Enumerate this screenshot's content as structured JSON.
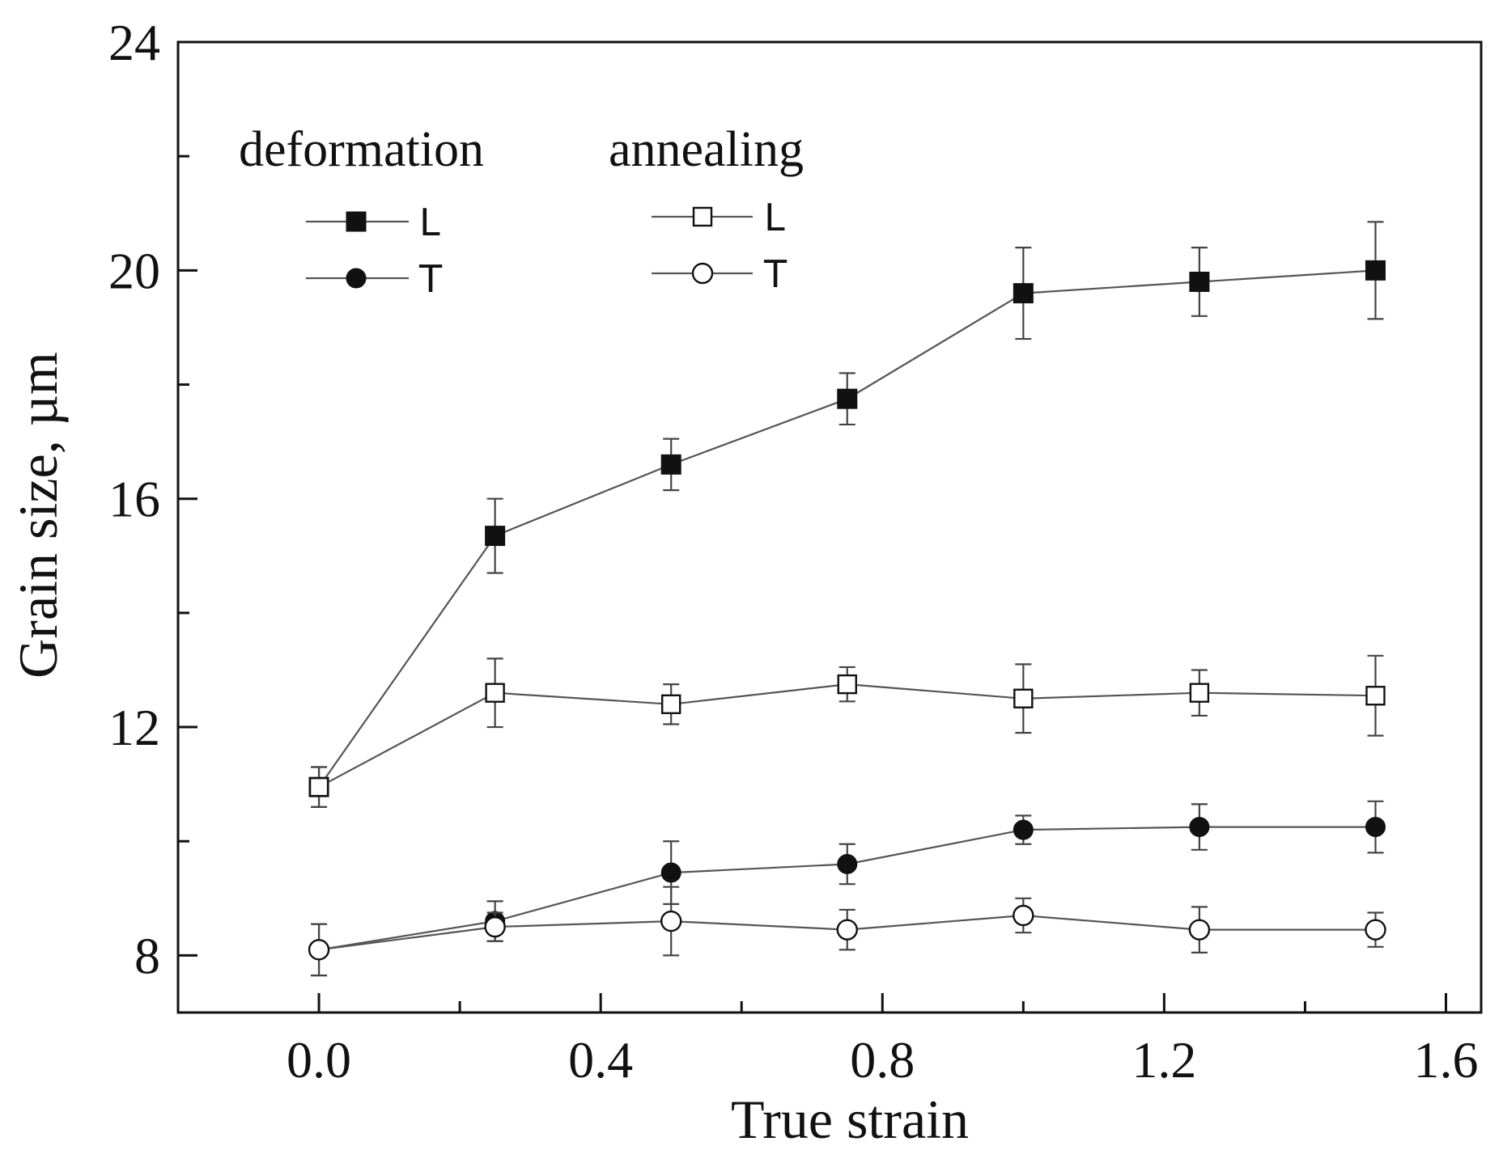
{
  "chart_data": {
    "type": "line",
    "title": "",
    "xlabel": "True strain",
    "ylabel": "Grain size, µm",
    "xlim": [
      -0.2,
      1.65
    ],
    "ylim": [
      7,
      24
    ],
    "xticks": [
      0.0,
      0.4,
      0.8,
      1.2,
      1.6
    ],
    "xtick_labels": [
      "0.0",
      "0.4",
      "0.8",
      "1.2",
      "1.6"
    ],
    "xminor": [
      0.2,
      0.6,
      1.0,
      1.4
    ],
    "yticks": [
      8,
      12,
      16,
      20,
      24
    ],
    "ytick_labels": [
      "8",
      "12",
      "16",
      "20",
      "24"
    ],
    "yminor": [
      10,
      14,
      18,
      22
    ],
    "legend": {
      "placement": "top-left",
      "groups": [
        {
          "heading": "deformation",
          "entries": [
            {
              "label": "L",
              "series": 0
            },
            {
              "label": "T",
              "series": 1
            }
          ]
        },
        {
          "heading": "annealing",
          "entries": [
            {
              "label": "L",
              "series": 2
            },
            {
              "label": "T",
              "series": 3
            }
          ]
        }
      ]
    },
    "series": [
      {
        "name": "deformation L",
        "marker": "square",
        "filled": true,
        "color": "#111111",
        "line_color": "#555555",
        "x": [
          0.0,
          0.25,
          0.5,
          0.75,
          1.0,
          1.25,
          1.5
        ],
        "values": [
          10.95,
          15.35,
          16.6,
          17.75,
          19.6,
          19.8,
          20.0
        ],
        "errors": [
          0.35,
          0.65,
          0.45,
          0.45,
          0.8,
          0.6,
          0.85
        ]
      },
      {
        "name": "deformation T",
        "marker": "circle",
        "filled": true,
        "color": "#111111",
        "line_color": "#555555",
        "x": [
          0.0,
          0.25,
          0.5,
          0.75,
          1.0,
          1.25,
          1.5
        ],
        "values": [
          8.1,
          8.6,
          9.45,
          9.6,
          10.2,
          10.25,
          10.25
        ],
        "errors": [
          0.45,
          0.35,
          0.55,
          0.35,
          0.25,
          0.4,
          0.45
        ]
      },
      {
        "name": "annealing L",
        "marker": "square",
        "filled": false,
        "color": "#111111",
        "line_color": "#555555",
        "x": [
          0.0,
          0.25,
          0.5,
          0.75,
          1.0,
          1.25,
          1.5
        ],
        "values": [
          10.95,
          12.6,
          12.4,
          12.75,
          12.5,
          12.6,
          12.55
        ],
        "errors": [
          0.35,
          0.6,
          0.35,
          0.3,
          0.6,
          0.4,
          0.7
        ]
      },
      {
        "name": "annealing T",
        "marker": "circle",
        "filled": false,
        "color": "#111111",
        "line_color": "#555555",
        "x": [
          0.0,
          0.25,
          0.5,
          0.75,
          1.0,
          1.25,
          1.5
        ],
        "values": [
          8.1,
          8.5,
          8.6,
          8.45,
          8.7,
          8.45,
          8.45
        ],
        "errors": [
          0.45,
          0.25,
          0.6,
          0.35,
          0.3,
          0.4,
          0.3
        ]
      }
    ]
  }
}
